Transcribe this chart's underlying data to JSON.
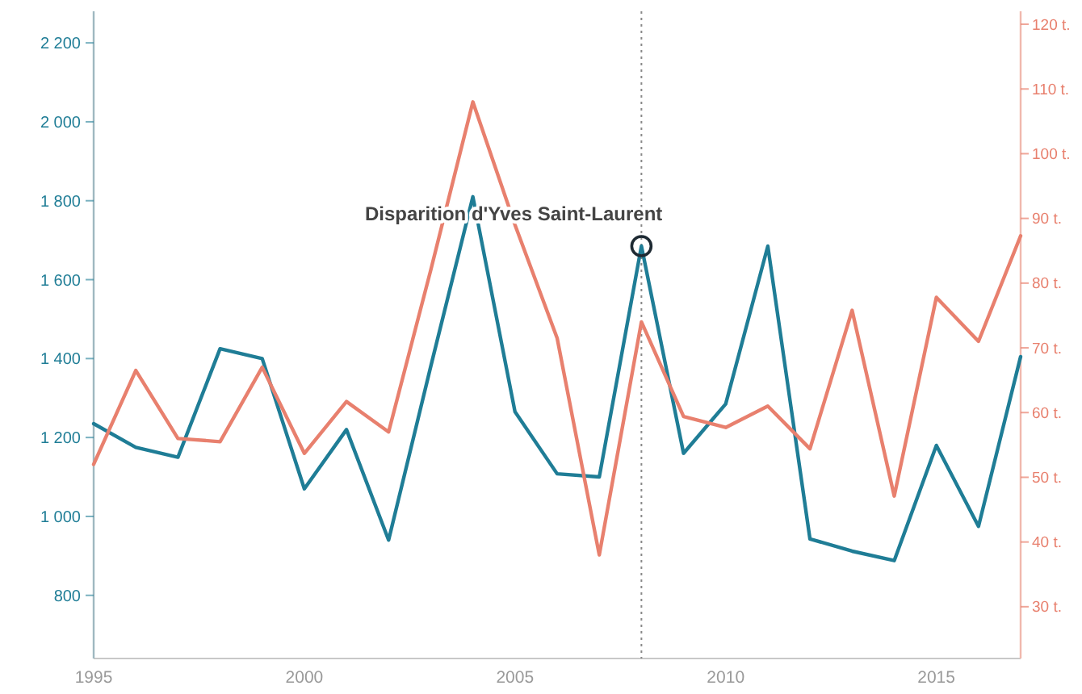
{
  "chart_data": {
    "type": "line",
    "x": [
      1995,
      1996,
      1997,
      1998,
      1999,
      2000,
      2001,
      2002,
      2003,
      2004,
      2005,
      2006,
      2007,
      2008,
      2009,
      2010,
      2011,
      2012,
      2013,
      2014,
      2015,
      2016,
      2017
    ],
    "series": [
      {
        "color": "#1f7d96",
        "values": [
          1235,
          1175,
          1150,
          1425,
          1400,
          1070,
          1220,
          940,
          1380,
          1810,
          1265,
          1108,
          1100,
          1685,
          1160,
          1285,
          1685,
          943,
          912,
          888,
          1180,
          975,
          1405
        ]
      },
      {
        "color": "#e8806e",
        "axis": "y2",
        "values": [
          52,
          66.5,
          56,
          55.5,
          67,
          53.7,
          61.7,
          57,
          82,
          108,
          89,
          71.5,
          38,
          74,
          59.4,
          57.7,
          61,
          54.4,
          75.8,
          47.1,
          77.8,
          71,
          87.3
        ]
      }
    ],
    "xlim": [
      1995,
      2017
    ],
    "xticks": [
      1995,
      2000,
      2005,
      2010,
      2015
    ],
    "ylim": [
      640,
      2280
    ],
    "yticks": [
      {
        "value": 800,
        "label": "800"
      },
      {
        "value": 1000,
        "label": "1 000"
      },
      {
        "value": 1200,
        "label": "1 200"
      },
      {
        "value": 1400,
        "label": "1 400"
      },
      {
        "value": 1600,
        "label": "1 600"
      },
      {
        "value": 1800,
        "label": "1 800"
      },
      {
        "value": 2000,
        "label": "2 000"
      },
      {
        "value": 2200,
        "label": "2 200"
      }
    ],
    "y2lim": [
      22,
      122
    ],
    "y2ticks": [
      {
        "value": 30,
        "label": "30 t."
      },
      {
        "value": 40,
        "label": "40 t."
      },
      {
        "value": 50,
        "label": "50 t."
      },
      {
        "value": 60,
        "label": "60 t."
      },
      {
        "value": 70,
        "label": "70 t."
      },
      {
        "value": 80,
        "label": "80 t."
      },
      {
        "value": 90,
        "label": "90 t."
      },
      {
        "value": 100,
        "label": "100 t."
      },
      {
        "value": 110,
        "label": "110 t."
      },
      {
        "value": 120,
        "label": "120 t."
      }
    ],
    "ref_lines": [
      {
        "axis": "x",
        "value": 2008,
        "line_style": "dotted",
        "color": "#888888"
      }
    ],
    "annotations": [
      {
        "text": "Disparition d'Yves Saint-Laurent",
        "x": 2008,
        "y": 1685
      }
    ],
    "grid": false,
    "marker": "none",
    "line_style": "solid"
  }
}
